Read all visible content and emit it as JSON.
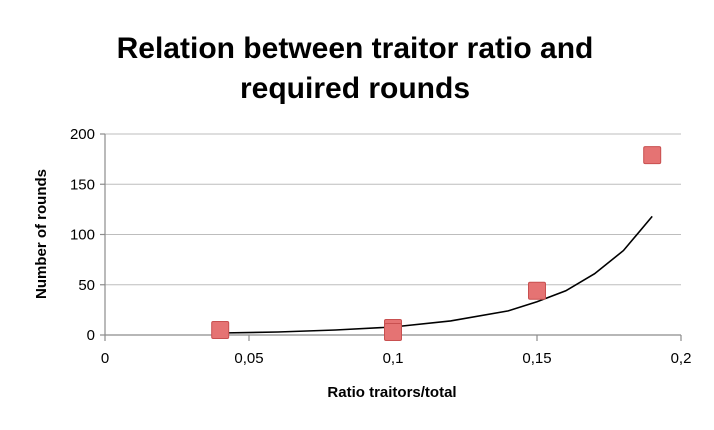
{
  "chart_data": {
    "type": "scatter",
    "title_lines": [
      "Relation between traitor ratio and",
      "required rounds"
    ],
    "xlabel": "Ratio traitors/total",
    "ylabel": "Number of rounds",
    "xlim": [
      0,
      0.2
    ],
    "ylim": [
      0,
      200
    ],
    "x_ticks": [
      0,
      0.05,
      0.1,
      0.15,
      0.2
    ],
    "x_tick_labels": [
      "0",
      "0,05",
      "0,1",
      "0,15",
      "0,2"
    ],
    "y_ticks": [
      0,
      50,
      100,
      150,
      200
    ],
    "y_tick_labels": [
      "0",
      "50",
      "100",
      "150",
      "200"
    ],
    "grid": "horizontal",
    "series": [
      {
        "marker": "square",
        "color": "#e57373",
        "points": [
          {
            "x": 0.04,
            "y": 5
          },
          {
            "x": 0.1,
            "y": 7
          },
          {
            "x": 0.1,
            "y": 3
          },
          {
            "x": 0.15,
            "y": 44
          },
          {
            "x": 0.19,
            "y": 179
          }
        ]
      }
    ],
    "trendline": {
      "type": "curve",
      "color": "#000000",
      "points": [
        {
          "x": 0.04,
          "y": 2
        },
        {
          "x": 0.06,
          "y": 3
        },
        {
          "x": 0.08,
          "y": 5
        },
        {
          "x": 0.1,
          "y": 8
        },
        {
          "x": 0.12,
          "y": 14
        },
        {
          "x": 0.14,
          "y": 24
        },
        {
          "x": 0.15,
          "y": 33
        },
        {
          "x": 0.16,
          "y": 44
        },
        {
          "x": 0.17,
          "y": 61
        },
        {
          "x": 0.18,
          "y": 84
        },
        {
          "x": 0.19,
          "y": 118
        }
      ]
    }
  }
}
